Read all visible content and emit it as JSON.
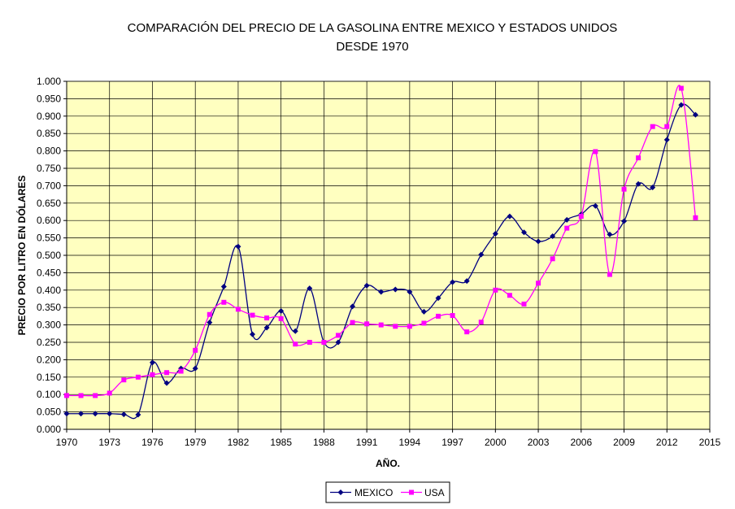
{
  "chart_data": {
    "type": "line",
    "title_line1": "COMPARACIÓN DEL PRECIO DE LA GASOLINA ENTRE MEXICO Y ESTADOS UNIDOS",
    "title_line2": "DESDE 1970",
    "xlabel": "AÑO.",
    "ylabel": "PRECIO POR LITRO EN DÓLARES",
    "xlim": [
      1970,
      2015
    ],
    "ylim": [
      0,
      1.0
    ],
    "x_ticks": [
      "1970",
      "1973",
      "1976",
      "1979",
      "1982",
      "1985",
      "1988",
      "1991",
      "1994",
      "1997",
      "2000",
      "2003",
      "2006",
      "2009",
      "2012",
      "2015"
    ],
    "y_ticks": [
      "0.000",
      "0.050",
      "0.100",
      "0.150",
      "0.200",
      "0.250",
      "0.300",
      "0.350",
      "0.400",
      "0.450",
      "0.500",
      "0.550",
      "0.600",
      "0.650",
      "0.700",
      "0.750",
      "0.800",
      "0.850",
      "0.900",
      "0.950",
      "1.000"
    ],
    "grid": true,
    "plot_background": "#ffffc0",
    "legend_position": "bottom-center",
    "x": [
      1970,
      1971,
      1972,
      1973,
      1974,
      1975,
      1976,
      1977,
      1978,
      1979,
      1980,
      1981,
      1982,
      1983,
      1984,
      1985,
      1986,
      1987,
      1988,
      1989,
      1990,
      1991,
      1992,
      1993,
      1994,
      1995,
      1996,
      1997,
      1998,
      1999,
      2000,
      2001,
      2002,
      2003,
      2004,
      2005,
      2006,
      2007,
      2008,
      2009,
      2010,
      2011,
      2012,
      2013,
      2014
    ],
    "series": [
      {
        "name": "MEXICO",
        "color": "#000080",
        "marker": "diamond",
        "values": [
          0.045,
          0.045,
          0.045,
          0.045,
          0.043,
          0.042,
          0.192,
          0.133,
          0.175,
          0.175,
          0.307,
          0.41,
          0.525,
          0.273,
          0.292,
          0.34,
          0.282,
          0.405,
          0.25,
          0.25,
          0.353,
          0.413,
          0.395,
          0.402,
          0.395,
          0.338,
          0.377,
          0.423,
          0.426,
          0.502,
          0.562,
          0.612,
          0.566,
          0.54,
          0.555,
          0.602,
          0.618,
          0.642,
          0.56,
          0.598,
          0.705,
          0.695,
          0.832,
          0.932,
          0.904
        ]
      },
      {
        "name": "USA",
        "color": "#ff00ff",
        "marker": "square",
        "values": [
          0.097,
          0.097,
          0.097,
          0.104,
          0.142,
          0.15,
          0.157,
          0.163,
          0.167,
          0.227,
          0.33,
          0.365,
          0.345,
          0.328,
          0.32,
          0.318,
          0.245,
          0.25,
          0.25,
          0.27,
          0.307,
          0.303,
          0.3,
          0.296,
          0.296,
          0.305,
          0.325,
          0.327,
          0.28,
          0.308,
          0.4,
          0.385,
          0.36,
          0.42,
          0.49,
          0.578,
          0.612,
          0.798,
          0.445,
          0.69,
          0.78,
          0.87,
          0.87,
          0.98,
          0.608
        ]
      }
    ]
  }
}
